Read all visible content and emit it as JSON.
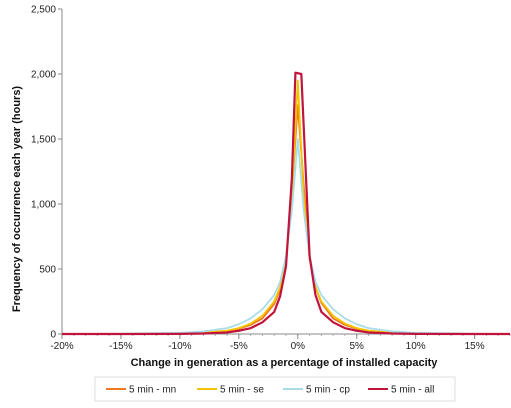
{
  "chart_data": {
    "type": "line",
    "title": "",
    "xlabel": "Change in generation as a percentage of installed capacity",
    "ylabel": "Frequency of occurrence each year (hours)",
    "xlim": [
      -20,
      18
    ],
    "ylim": [
      0,
      2500
    ],
    "x_ticks": [
      -20,
      -15,
      -10,
      -5,
      0,
      5,
      10,
      15
    ],
    "x_tick_labels": [
      "-20%",
      "-15%",
      "-10%",
      "-5%",
      "0%",
      "5%",
      "10%",
      "15%"
    ],
    "y_ticks": [
      0,
      500,
      1000,
      1500,
      2000,
      2500
    ],
    "y_tick_labels": [
      "0",
      "500",
      "1,000",
      "1,500",
      "2,000",
      "2,500"
    ],
    "grid": false,
    "legend_position": "bottom",
    "series": [
      {
        "name": "5 min - mn",
        "color": "#f07820",
        "x": [
          -20,
          -15,
          -10,
          -8,
          -6,
          -5,
          -4,
          -3,
          -2,
          -1.5,
          -1,
          -0.5,
          0,
          0.5,
          1,
          1.5,
          2,
          3,
          4,
          5,
          6,
          8,
          10,
          15,
          18
        ],
        "y": [
          0,
          0,
          3,
          8,
          22,
          40,
          70,
          120,
          230,
          340,
          560,
          1100,
          1760,
          1150,
          580,
          360,
          240,
          120,
          70,
          40,
          22,
          8,
          3,
          0,
          0
        ]
      },
      {
        "name": "5 min - se",
        "color": "#f5c400",
        "x": [
          -20,
          -15,
          -10,
          -8,
          -6,
          -5,
          -4,
          -3,
          -2,
          -1.5,
          -1,
          -0.5,
          0,
          0.5,
          1,
          1.5,
          2,
          3,
          4,
          5,
          6,
          8,
          10,
          15,
          18
        ],
        "y": [
          0,
          0,
          4,
          10,
          26,
          45,
          80,
          140,
          250,
          360,
          580,
          1050,
          1950,
          1050,
          580,
          360,
          250,
          140,
          80,
          45,
          26,
          10,
          4,
          0,
          0
        ]
      },
      {
        "name": "5 min - cp",
        "color": "#a8dce8",
        "x": [
          -20,
          -15,
          -10,
          -8,
          -6,
          -5,
          -4,
          -3,
          -2,
          -1.5,
          -1,
          -0.5,
          0,
          0.5,
          1,
          1.5,
          2,
          3,
          4,
          5,
          6,
          8,
          10,
          15,
          18
        ],
        "y": [
          0,
          2,
          8,
          20,
          45,
          75,
          120,
          190,
          300,
          400,
          600,
          950,
          1500,
          950,
          600,
          400,
          300,
          190,
          120,
          75,
          45,
          20,
          8,
          2,
          0
        ]
      },
      {
        "name": "5 min - all",
        "color": "#c0143c",
        "x": [
          -20,
          -15,
          -10,
          -8,
          -6,
          -5,
          -4,
          -3,
          -2,
          -1.5,
          -1,
          -0.5,
          -0.2,
          0.3,
          0.7,
          1,
          1.5,
          2,
          3,
          4,
          5,
          6,
          8,
          10,
          15,
          18
        ],
        "y": [
          0,
          0,
          1,
          4,
          12,
          25,
          45,
          90,
          170,
          290,
          520,
          1200,
          2010,
          2000,
          1200,
          600,
          300,
          170,
          90,
          45,
          25,
          12,
          4,
          1,
          0,
          0
        ]
      }
    ]
  }
}
